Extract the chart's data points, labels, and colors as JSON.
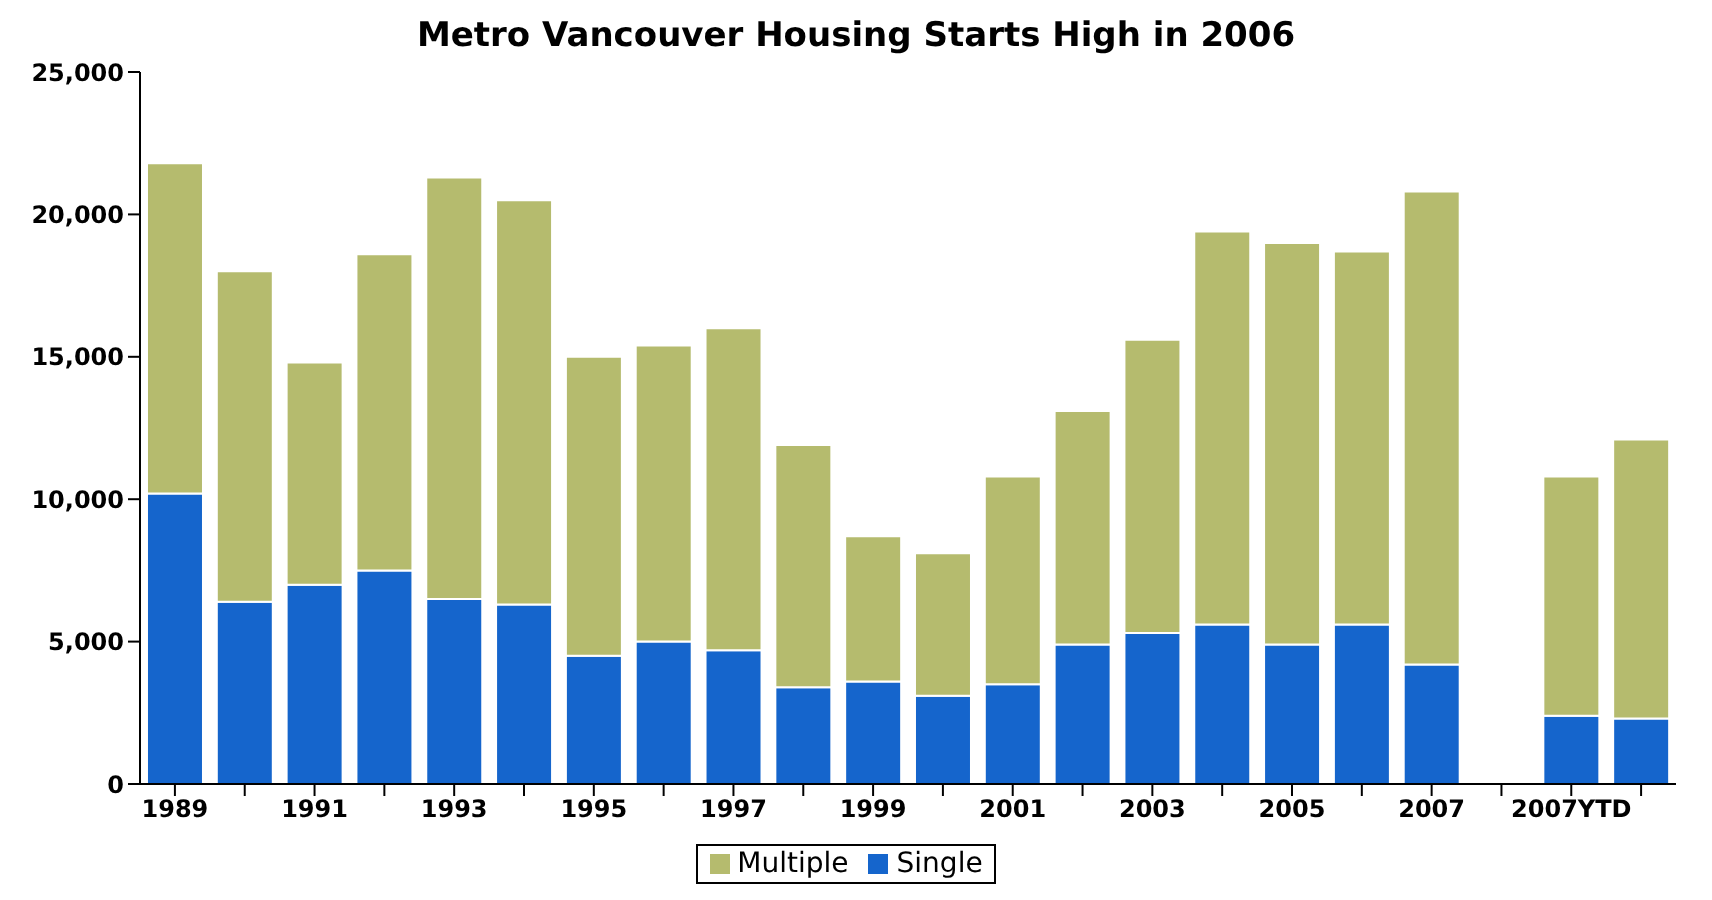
{
  "chart_data": {
    "type": "bar",
    "title": "Metro Vancouver Housing Starts High in 2006",
    "stacked": true,
    "categories": [
      "1989",
      null,
      "1991",
      null,
      "1993",
      null,
      "1995",
      null,
      "1997",
      null,
      "1999",
      null,
      "2001",
      null,
      "2003",
      null,
      "2005",
      null,
      "2007",
      null,
      "2007YTD",
      null
    ],
    "series": [
      {
        "name": "Single",
        "color": "#1565cc",
        "values": [
          10200,
          6400,
          7000,
          7500,
          6500,
          6300,
          4500,
          5000,
          4700,
          3400,
          3600,
          3100,
          3500,
          4900,
          5300,
          5600,
          4900,
          5600,
          4200,
          null,
          2400,
          2300
        ]
      },
      {
        "name": "Multiple",
        "color": "#b5bb6e",
        "values": [
          11600,
          11600,
          7800,
          11100,
          14800,
          14200,
          10500,
          10400,
          11300,
          8500,
          5100,
          5000,
          7300,
          8200,
          10300,
          13800,
          14100,
          13100,
          16600,
          null,
          8400,
          9800
        ]
      }
    ],
    "ylim": [
      0,
      25000
    ],
    "yticks": [
      {
        "value": 0,
        "label": "0"
      },
      {
        "value": 5000,
        "label": "5,000"
      },
      {
        "value": 10000,
        "label": "10,000"
      },
      {
        "value": 15000,
        "label": "15,000"
      },
      {
        "value": 20000,
        "label": "20,000"
      },
      {
        "value": 25000,
        "label": "25,000"
      }
    ],
    "grid": false,
    "legend": "bottom"
  }
}
